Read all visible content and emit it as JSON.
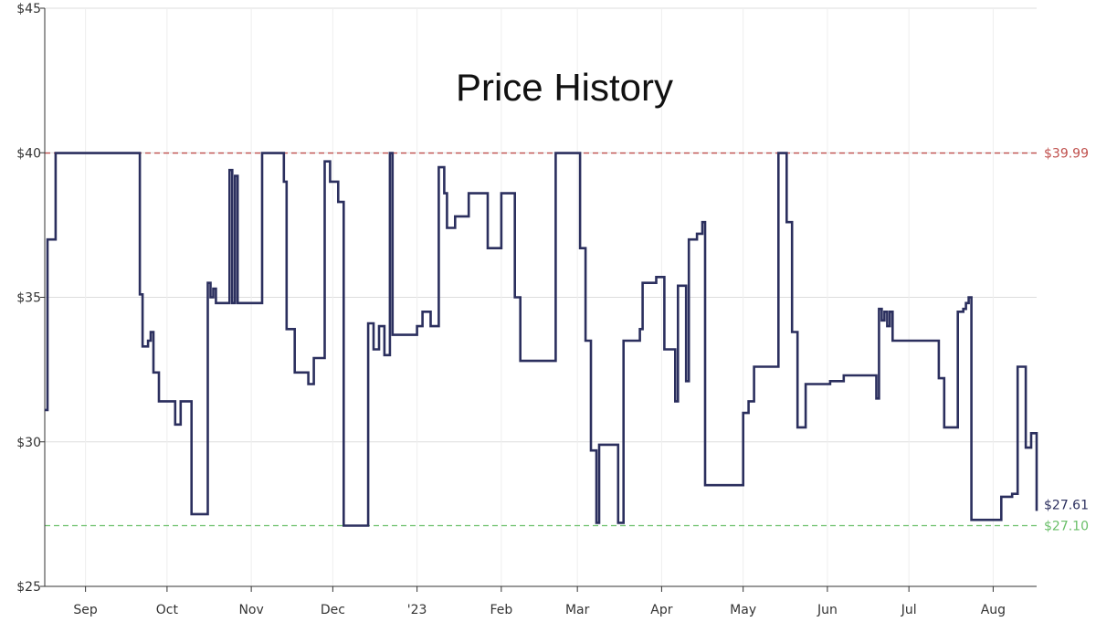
{
  "chart_data": {
    "type": "line",
    "title": "Price History",
    "xlabel": "",
    "ylabel": "",
    "ylim": [
      25,
      45
    ],
    "y_ticks": [
      "$25",
      "$30",
      "$35",
      "$40",
      "$45"
    ],
    "y_tick_values": [
      25,
      30,
      35,
      40,
      45
    ],
    "x_tick_labels": [
      "Sep",
      "Oct",
      "Nov",
      "Dec",
      "'23",
      "Feb",
      "Mar",
      "Apr",
      "May",
      "Jun",
      "Jul",
      "Aug"
    ],
    "x_tick_dates": [
      "2022-09-01",
      "2022-10-01",
      "2022-11-01",
      "2022-12-01",
      "2023-01-01",
      "2023-02-01",
      "2023-03-01",
      "2023-04-01",
      "2023-05-01",
      "2023-06-01",
      "2023-07-01",
      "2023-08-01"
    ],
    "xlim": [
      "2022-08-17",
      "2023-08-17"
    ],
    "grid": true,
    "colors": {
      "line": "#2b2f5e",
      "max_ref": "#c0504d",
      "min_ref": "#6abf69",
      "grid": "#dddddd"
    },
    "reference_lines": [
      {
        "label": "$39.99",
        "value": 39.99,
        "color": "#c0504d"
      },
      {
        "label": "$27.10",
        "value": 27.1,
        "color": "#6abf69"
      }
    ],
    "current_label": "$27.61",
    "series": [
      {
        "step": true,
        "points": [
          [
            "2022-08-17",
            31.1
          ],
          [
            "2022-08-18",
            37.0
          ],
          [
            "2022-08-21",
            39.99
          ],
          [
            "2022-09-21",
            35.1
          ],
          [
            "2022-09-22",
            33.3
          ],
          [
            "2022-09-24",
            33.5
          ],
          [
            "2022-09-25",
            33.8
          ],
          [
            "2022-09-26",
            32.4
          ],
          [
            "2022-09-28",
            31.4
          ],
          [
            "2022-10-04",
            30.6
          ],
          [
            "2022-10-06",
            31.4
          ],
          [
            "2022-10-10",
            27.5
          ],
          [
            "2022-10-16",
            35.5
          ],
          [
            "2022-10-17",
            35.0
          ],
          [
            "2022-10-18",
            35.3
          ],
          [
            "2022-10-19",
            34.8
          ],
          [
            "2022-10-24",
            39.4
          ],
          [
            "2022-10-25",
            34.8
          ],
          [
            "2022-10-26",
            39.2
          ],
          [
            "2022-10-27",
            34.8
          ],
          [
            "2022-11-05",
            39.99
          ],
          [
            "2022-11-13",
            39.0
          ],
          [
            "2022-11-14",
            33.9
          ],
          [
            "2022-11-17",
            32.4
          ],
          [
            "2022-11-22",
            32.0
          ],
          [
            "2022-11-24",
            32.9
          ],
          [
            "2022-11-28",
            39.7
          ],
          [
            "2022-11-30",
            39.0
          ],
          [
            "2022-12-03",
            38.3
          ],
          [
            "2022-12-05",
            27.1
          ],
          [
            "2022-12-14",
            34.1
          ],
          [
            "2022-12-16",
            33.2
          ],
          [
            "2022-12-18",
            34.0
          ],
          [
            "2022-12-20",
            33.0
          ],
          [
            "2022-12-22",
            39.99
          ],
          [
            "2022-12-23",
            33.7
          ],
          [
            "2023-01-01",
            34.0
          ],
          [
            "2023-01-03",
            34.5
          ],
          [
            "2023-01-06",
            34.0
          ],
          [
            "2023-01-09",
            39.5
          ],
          [
            "2023-01-11",
            38.6
          ],
          [
            "2023-01-12",
            37.4
          ],
          [
            "2023-01-15",
            37.8
          ],
          [
            "2023-01-20",
            38.6
          ],
          [
            "2023-01-27",
            36.7
          ],
          [
            "2023-02-01",
            38.6
          ],
          [
            "2023-02-06",
            35.0
          ],
          [
            "2023-02-08",
            32.8
          ],
          [
            "2023-02-21",
            39.99
          ],
          [
            "2023-03-02",
            36.7
          ],
          [
            "2023-03-04",
            33.5
          ],
          [
            "2023-03-06",
            29.7
          ],
          [
            "2023-03-08",
            27.2
          ],
          [
            "2023-03-09",
            29.9
          ],
          [
            "2023-03-16",
            27.2
          ],
          [
            "2023-03-18",
            33.5
          ],
          [
            "2023-03-24",
            33.9
          ],
          [
            "2023-03-25",
            35.5
          ],
          [
            "2023-03-30",
            35.7
          ],
          [
            "2023-04-02",
            33.2
          ],
          [
            "2023-04-06",
            31.4
          ],
          [
            "2023-04-07",
            35.4
          ],
          [
            "2023-04-10",
            32.1
          ],
          [
            "2023-04-11",
            37.0
          ],
          [
            "2023-04-14",
            37.2
          ],
          [
            "2023-04-16",
            37.6
          ],
          [
            "2023-04-17",
            28.5
          ],
          [
            "2023-05-01",
            31.0
          ],
          [
            "2023-05-03",
            31.4
          ],
          [
            "2023-05-05",
            32.6
          ],
          [
            "2023-05-14",
            39.99
          ],
          [
            "2023-05-17",
            37.6
          ],
          [
            "2023-05-19",
            33.8
          ],
          [
            "2023-05-21",
            30.5
          ],
          [
            "2023-05-24",
            32.0
          ],
          [
            "2023-06-02",
            32.1
          ],
          [
            "2023-06-07",
            32.3
          ],
          [
            "2023-06-19",
            31.5
          ],
          [
            "2023-06-20",
            34.6
          ],
          [
            "2023-06-21",
            34.2
          ],
          [
            "2023-06-22",
            34.5
          ],
          [
            "2023-06-23",
            34.0
          ],
          [
            "2023-06-24",
            34.5
          ],
          [
            "2023-06-25",
            33.5
          ],
          [
            "2023-07-12",
            32.2
          ],
          [
            "2023-07-14",
            30.5
          ],
          [
            "2023-07-19",
            34.5
          ],
          [
            "2023-07-21",
            34.6
          ],
          [
            "2023-07-22",
            34.8
          ],
          [
            "2023-07-23",
            35.0
          ],
          [
            "2023-07-24",
            27.3
          ],
          [
            "2023-08-04",
            28.1
          ],
          [
            "2023-08-08",
            28.2
          ],
          [
            "2023-08-10",
            32.6
          ],
          [
            "2023-08-13",
            29.8
          ],
          [
            "2023-08-15",
            30.3
          ],
          [
            "2023-08-17",
            27.61
          ]
        ]
      }
    ]
  }
}
